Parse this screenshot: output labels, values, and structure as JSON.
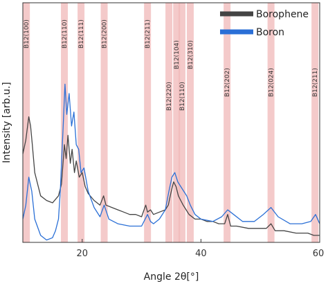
{
  "chart_data": {
    "type": "line",
    "title": "",
    "xlabel": "Angle 2θ[°]",
    "ylabel": "Intensity [arb.u.]",
    "xlim": [
      10,
      60
    ],
    "ylim": [
      0,
      100
    ],
    "x_ticks": [
      20,
      40,
      60
    ],
    "y_ticks": [],
    "grid": false,
    "legend_position": "top-right",
    "phase_markers": [
      {
        "x": 10.6,
        "label": "B12(100)"
      },
      {
        "x": 17.0,
        "label": "B12(110)"
      },
      {
        "x": 19.8,
        "label": "B12(111)"
      },
      {
        "x": 23.7,
        "label": "B12(200)"
      },
      {
        "x": 31.0,
        "label": "B12(211)"
      },
      {
        "x": 34.6,
        "label": "B12(220)"
      },
      {
        "x": 35.9,
        "label": "B12(104)"
      },
      {
        "x": 36.8,
        "label": "B12(110)"
      },
      {
        "x": 38.2,
        "label": "B12(310)"
      },
      {
        "x": 44.4,
        "label": "B12(202)"
      },
      {
        "x": 51.8,
        "label": "B12(024)"
      },
      {
        "x": 59.2,
        "label": "B12(211)"
      }
    ],
    "series": [
      {
        "name": "Borophene",
        "color": "#444444",
        "x": [
          10,
          10.5,
          11,
          11.3,
          11.6,
          12,
          13,
          14,
          15,
          16,
          16.5,
          17,
          17.3,
          17.6,
          18,
          18.3,
          18.7,
          19,
          19.5,
          20,
          20.5,
          21,
          22,
          23,
          23.6,
          24,
          25,
          26,
          27,
          28,
          29,
          30,
          30.7,
          31,
          31.5,
          32,
          33,
          34,
          34.5,
          35,
          35.4,
          35.8,
          36.2,
          36.6,
          37,
          37.5,
          38,
          39,
          40,
          41,
          42,
          43,
          44,
          44.5,
          45,
          46,
          48,
          50,
          51,
          51.8,
          52.5,
          54,
          56,
          58,
          59,
          60
        ],
        "y": [
          38,
          44,
          54,
          50,
          42,
          30,
          20,
          18,
          17,
          20,
          25,
          42,
          36,
          46,
          34,
          40,
          30,
          35,
          28,
          30,
          24,
          21,
          18,
          16,
          20,
          16,
          15,
          14,
          13,
          12,
          12,
          11,
          16,
          13,
          14,
          12,
          13,
          14,
          16,
          22,
          26,
          24,
          20,
          18,
          16,
          14,
          12,
          10,
          10,
          9,
          9,
          8,
          8,
          12,
          7,
          7,
          6,
          6,
          6,
          8,
          5,
          5,
          4,
          4,
          3,
          3
        ]
      },
      {
        "name": "Boron",
        "color": "#2a6fd6",
        "x": [
          10,
          10.5,
          11,
          11.5,
          12,
          13,
          14,
          15,
          15.5,
          16,
          16.3,
          16.8,
          17.1,
          17.4,
          17.8,
          18.2,
          18.6,
          19,
          19.4,
          19.8,
          20.3,
          21,
          22,
          23,
          23.7,
          24.5,
          26,
          28,
          30,
          31,
          31.5,
          32,
          33,
          34,
          34.6,
          35.1,
          35.6,
          36.1,
          36.6,
          37.1,
          37.6,
          38.2,
          39,
          40,
          42,
          43.5,
          44.5,
          45.5,
          47,
          49,
          50.5,
          51.8,
          53,
          55,
          57,
          58.5,
          59.3,
          60
        ],
        "y": [
          10,
          16,
          28,
          22,
          10,
          3,
          1,
          2,
          5,
          10,
          22,
          50,
          68,
          55,
          64,
          50,
          56,
          42,
          40,
          30,
          32,
          22,
          15,
          11,
          16,
          10,
          8,
          7,
          7,
          12,
          9,
          8,
          10,
          14,
          22,
          28,
          30,
          26,
          24,
          22,
          20,
          16,
          12,
          10,
          9,
          11,
          14,
          12,
          9,
          9,
          12,
          15,
          11,
          8,
          8,
          9,
          12,
          8
        ]
      }
    ]
  }
}
